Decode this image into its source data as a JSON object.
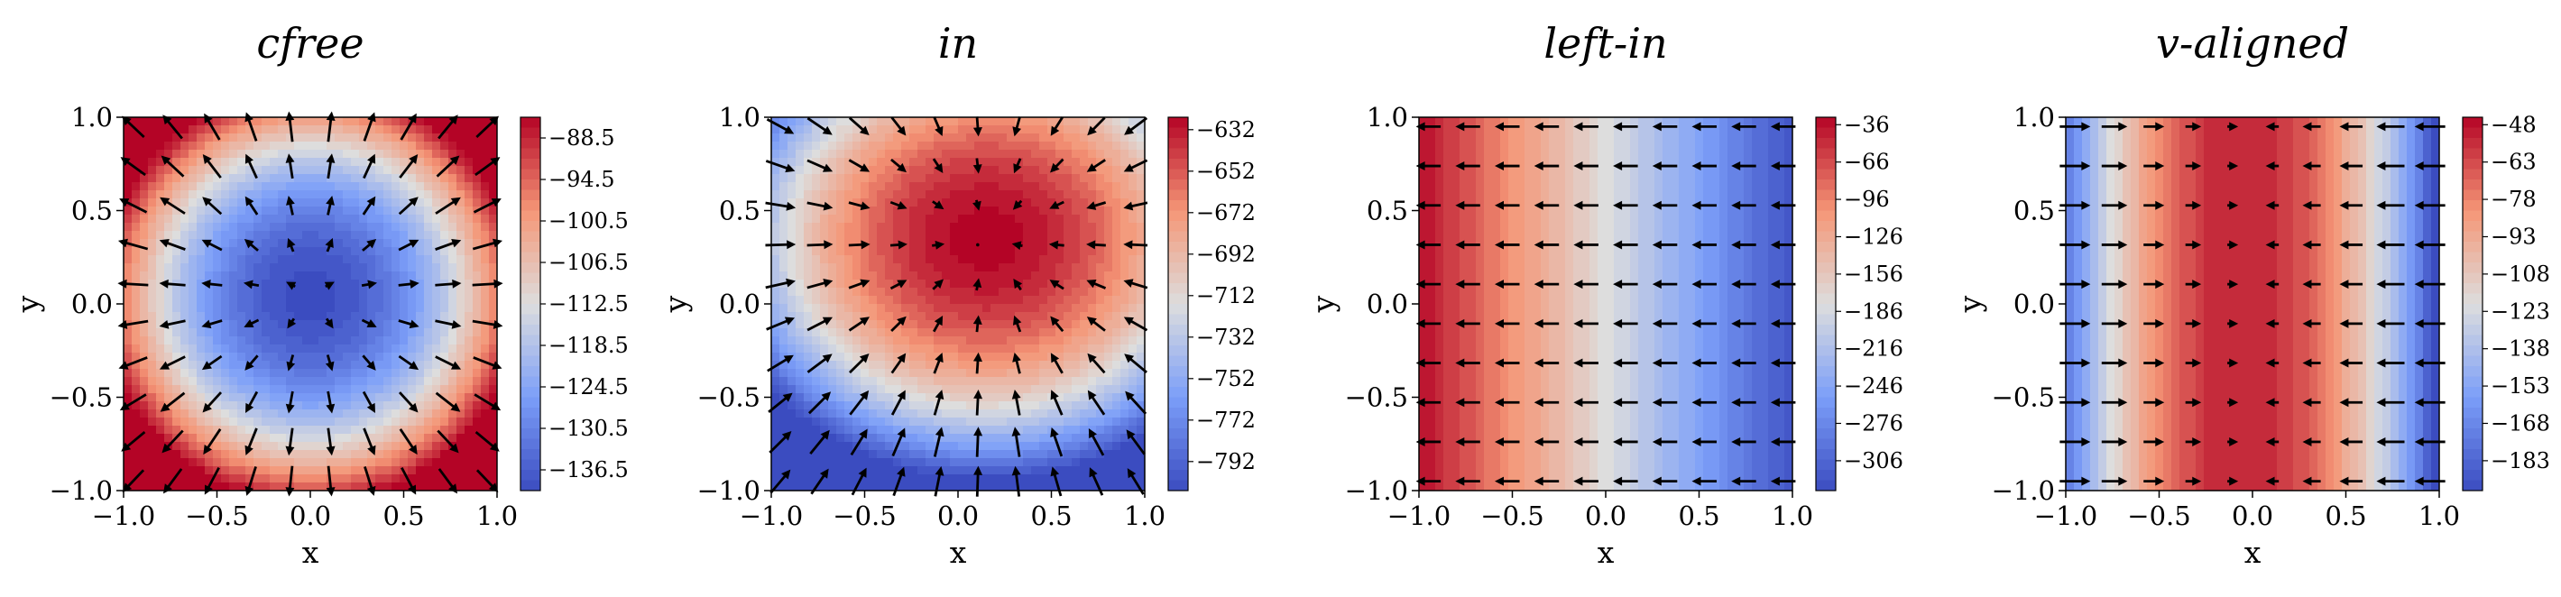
{
  "figure": {
    "panel_count": 4
  },
  "chart_data": [
    {
      "type": "heatmap",
      "title": "cfree",
      "xlabel": "x",
      "ylabel": "y",
      "xlim": [
        -1.0,
        1.0
      ],
      "ylim": [
        -1.0,
        1.0
      ],
      "xticks": [
        "−1.0",
        "−0.5",
        "0.0",
        "0.5",
        "1.0"
      ],
      "yticks": [
        "−1.0",
        "−0.5",
        "0.0",
        "0.5",
        "1.0"
      ],
      "colormap": "coolwarm",
      "field": "bowl",
      "field_params": {
        "cx": 0.0,
        "cy": 0.05
      },
      "arrows": "outward from minimum",
      "colorbar": {
        "min": -139.5,
        "max": -85.5,
        "ticks": [
          -88.5,
          -94.5,
          -100.5,
          -106.5,
          -112.5,
          -118.5,
          -124.5,
          -130.5,
          -136.5
        ],
        "tick_labels": [
          "−88.5",
          "−94.5",
          "−100.5",
          "−106.5",
          "−112.5",
          "−118.5",
          "−124.5",
          "−130.5",
          "−136.5"
        ]
      }
    },
    {
      "type": "heatmap",
      "title": "in",
      "xlabel": "x",
      "ylabel": "y",
      "xlim": [
        -1.0,
        1.0
      ],
      "ylim": [
        -1.0,
        1.0
      ],
      "xticks": [
        "−1.0",
        "−0.5",
        "0.0",
        "0.5",
        "1.0"
      ],
      "yticks": [
        "−1.0",
        "−0.5",
        "0.0",
        "0.5",
        "1.0"
      ],
      "colormap": "coolwarm",
      "field": "peak",
      "field_params": {
        "cx": 0.15,
        "cy": 0.35
      },
      "arrows": "inward toward maximum",
      "colorbar": {
        "min": -806,
        "max": -626,
        "ticks": [
          -632,
          -652,
          -672,
          -692,
          -712,
          -732,
          -752,
          -772,
          -792
        ],
        "tick_labels": [
          "−632",
          "−652",
          "−672",
          "−692",
          "−712",
          "−732",
          "−752",
          "−772",
          "−792"
        ]
      }
    },
    {
      "type": "heatmap",
      "title": "left-in",
      "xlabel": "x",
      "ylabel": "y",
      "xlim": [
        -1.0,
        1.0
      ],
      "ylim": [
        -1.0,
        1.0
      ],
      "xticks": [
        "−1.0",
        "−0.5",
        "0.0",
        "0.5",
        "1.0"
      ],
      "yticks": [
        "−1.0",
        "−0.5",
        "0.0",
        "0.5",
        "1.0"
      ],
      "colormap": "coolwarm",
      "field": "gradient-x",
      "field_params": {},
      "arrows": "pointing left",
      "colorbar": {
        "min": -330,
        "max": -30,
        "ticks": [
          -36,
          -66,
          -96,
          -126,
          -156,
          -186,
          -216,
          -246,
          -276,
          -306
        ],
        "tick_labels": [
          "−36",
          "−66",
          "−96",
          "−126",
          "−156",
          "−186",
          "−216",
          "−246",
          "−276",
          "−306"
        ]
      }
    },
    {
      "type": "heatmap",
      "title": "v-aligned",
      "xlabel": "x",
      "ylabel": "y",
      "xlim": [
        -1.0,
        1.0
      ],
      "ylim": [
        -1.0,
        1.0
      ],
      "xticks": [
        "−1.0",
        "−0.5",
        "0.0",
        "0.5",
        "1.0"
      ],
      "yticks": [
        "−1.0",
        "−0.5",
        "0.0",
        "0.5",
        "1.0"
      ],
      "colormap": "coolwarm",
      "field": "ridge-x",
      "field_params": {
        "cx": -0.05
      },
      "arrows": "toward x = 0",
      "colorbar": {
        "min": -195,
        "max": -45,
        "ticks": [
          -48,
          -63,
          -78,
          -93,
          -108,
          -123,
          -138,
          -153,
          -168,
          -183
        ],
        "tick_labels": [
          "−48",
          "−63",
          "−78",
          "−93",
          "−108",
          "−123",
          "−138",
          "−153",
          "−168",
          "−183"
        ]
      }
    }
  ]
}
